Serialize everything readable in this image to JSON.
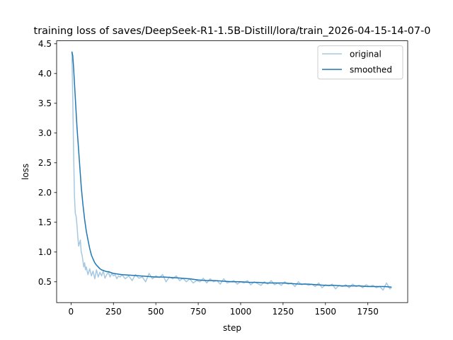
{
  "chart_data": {
    "type": "line",
    "title": "training loss of saves/DeepSeek-R1-1.5B-Distill/lora/train_2026-04-15-14-07-0",
    "xlabel": "step",
    "ylabel": "loss",
    "xlim": [
      -85,
      1985
    ],
    "ylim": [
      0.15,
      4.55
    ],
    "xticks": [
      0,
      250,
      500,
      750,
      1000,
      1250,
      1500,
      1750
    ],
    "yticks": [
      0.5,
      1.0,
      1.5,
      2.0,
      2.5,
      3.0,
      3.5,
      4.0,
      4.5
    ],
    "xtick_labels": [
      "0",
      "250",
      "500",
      "750",
      "1000",
      "1250",
      "1500",
      "1750"
    ],
    "ytick_labels": [
      "0.5",
      "1.0",
      "1.5",
      "2.0",
      "2.5",
      "3.0",
      "3.5",
      "4.0",
      "4.5"
    ],
    "grid": false,
    "legend_position": "upper right",
    "series": [
      {
        "name": "original",
        "color": "#a6c8e1",
        "x": [
          5,
          10,
          15,
          20,
          25,
          30,
          35,
          40,
          45,
          50,
          55,
          60,
          65,
          70,
          75,
          80,
          85,
          90,
          95,
          100,
          110,
          120,
          130,
          140,
          150,
          160,
          170,
          180,
          190,
          200,
          210,
          220,
          230,
          240,
          250,
          260,
          270,
          280,
          290,
          300,
          320,
          340,
          360,
          380,
          400,
          420,
          440,
          460,
          480,
          500,
          520,
          540,
          560,
          580,
          600,
          620,
          640,
          660,
          680,
          700,
          720,
          740,
          760,
          780,
          800,
          820,
          840,
          860,
          880,
          900,
          920,
          940,
          960,
          980,
          1000,
          1020,
          1040,
          1060,
          1080,
          1100,
          1120,
          1140,
          1160,
          1180,
          1200,
          1220,
          1240,
          1260,
          1280,
          1300,
          1320,
          1340,
          1360,
          1380,
          1400,
          1420,
          1440,
          1460,
          1480,
          1500,
          1520,
          1540,
          1560,
          1580,
          1600,
          1620,
          1640,
          1660,
          1680,
          1700,
          1720,
          1740,
          1760,
          1780,
          1800,
          1820,
          1840,
          1860,
          1880,
          1890
        ],
        "y": [
          4.35,
          3.6,
          2.7,
          1.95,
          1.65,
          1.6,
          1.45,
          1.25,
          1.1,
          1.15,
          1.2,
          1.0,
          0.95,
          0.85,
          0.75,
          0.82,
          0.7,
          0.75,
          0.68,
          0.62,
          0.72,
          0.6,
          0.68,
          0.55,
          0.7,
          0.58,
          0.66,
          0.6,
          0.68,
          0.56,
          0.62,
          0.66,
          0.58,
          0.64,
          0.6,
          0.62,
          0.55,
          0.6,
          0.58,
          0.62,
          0.55,
          0.6,
          0.52,
          0.62,
          0.56,
          0.58,
          0.5,
          0.64,
          0.55,
          0.6,
          0.57,
          0.62,
          0.5,
          0.58,
          0.55,
          0.6,
          0.52,
          0.56,
          0.5,
          0.55,
          0.48,
          0.52,
          0.5,
          0.56,
          0.48,
          0.55,
          0.5,
          0.52,
          0.46,
          0.55,
          0.48,
          0.5,
          0.52,
          0.46,
          0.5,
          0.48,
          0.52,
          0.45,
          0.5,
          0.47,
          0.44,
          0.5,
          0.46,
          0.52,
          0.45,
          0.48,
          0.44,
          0.5,
          0.46,
          0.48,
          0.42,
          0.5,
          0.45,
          0.47,
          0.44,
          0.46,
          0.42,
          0.48,
          0.4,
          0.45,
          0.43,
          0.46,
          0.38,
          0.44,
          0.42,
          0.45,
          0.4,
          0.46,
          0.42,
          0.44,
          0.4,
          0.45,
          0.42,
          0.44,
          0.4,
          0.42,
          0.36,
          0.48,
          0.38,
          0.4
        ]
      },
      {
        "name": "smoothed",
        "color": "#1f77b4",
        "x": [
          5,
          10,
          15,
          20,
          25,
          30,
          35,
          40,
          50,
          60,
          70,
          80,
          90,
          100,
          110,
          120,
          130,
          140,
          150,
          160,
          170,
          180,
          190,
          200,
          210,
          220,
          230,
          240,
          250,
          275,
          300,
          350,
          400,
          450,
          500,
          550,
          600,
          650,
          700,
          750,
          800,
          850,
          900,
          950,
          1000,
          1050,
          1100,
          1150,
          1200,
          1250,
          1300,
          1350,
          1400,
          1450,
          1500,
          1550,
          1600,
          1650,
          1700,
          1750,
          1800,
          1850,
          1890
        ],
        "y": [
          4.37,
          4.3,
          4.1,
          3.85,
          3.6,
          3.35,
          3.1,
          2.9,
          2.5,
          2.1,
          1.8,
          1.55,
          1.35,
          1.2,
          1.06,
          0.95,
          0.88,
          0.82,
          0.78,
          0.75,
          0.72,
          0.7,
          0.69,
          0.68,
          0.67,
          0.67,
          0.66,
          0.65,
          0.64,
          0.63,
          0.62,
          0.61,
          0.6,
          0.59,
          0.58,
          0.58,
          0.57,
          0.56,
          0.55,
          0.53,
          0.52,
          0.52,
          0.51,
          0.5,
          0.5,
          0.49,
          0.49,
          0.48,
          0.48,
          0.48,
          0.47,
          0.46,
          0.46,
          0.45,
          0.44,
          0.44,
          0.43,
          0.43,
          0.43,
          0.42,
          0.42,
          0.42,
          0.41
        ]
      }
    ]
  }
}
